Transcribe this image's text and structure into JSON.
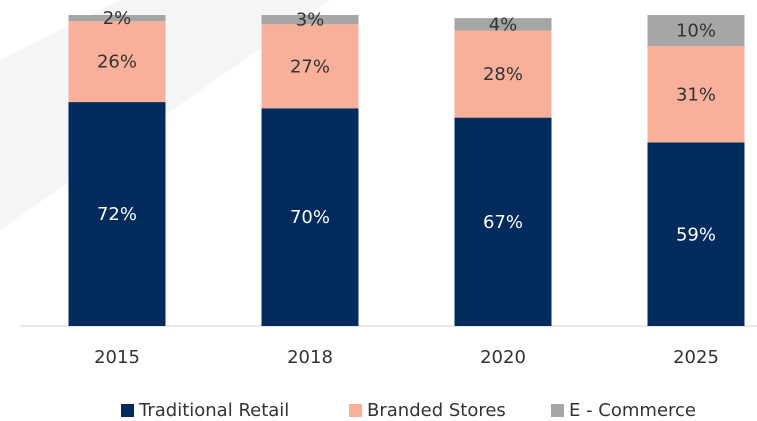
{
  "chart_data": {
    "type": "stacked_bar",
    "categories": [
      "2015",
      "2018",
      "2020",
      "2025"
    ],
    "series": [
      {
        "name": "Traditional Retail",
        "color": "#002b5c",
        "values": [
          72,
          70,
          67,
          59
        ],
        "value_labels": [
          "72%",
          "70%",
          "67%",
          "59%"
        ]
      },
      {
        "name": "Branded Stores",
        "color": "#f8b09a",
        "values": [
          26,
          27,
          28,
          31
        ],
        "value_labels": [
          "26%",
          "27%",
          "28%",
          "31%"
        ]
      },
      {
        "name": "E - Commerce",
        "color": "#a6a6a6",
        "values": [
          2,
          3,
          4,
          10
        ],
        "value_labels": [
          "2%",
          "3%",
          "4%",
          "10%"
        ]
      }
    ],
    "ylim": [
      0,
      100
    ],
    "legend": "bottom"
  }
}
